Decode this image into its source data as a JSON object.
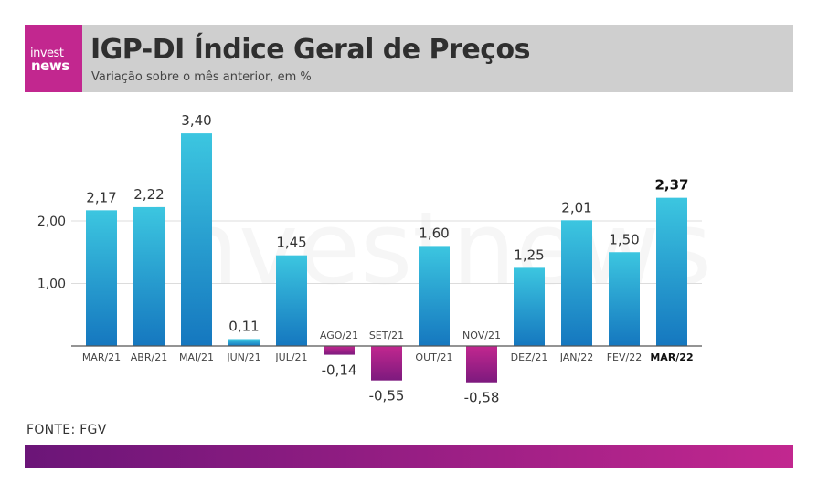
{
  "header": {
    "logo_top": "invest",
    "logo_bottom": "news",
    "title": "IGP-DI   Índice Geral de Preços",
    "subtitle": "Variação sobre o mês anterior, em %"
  },
  "watermark": "investnews",
  "source": "FONTE: FGV",
  "colors": {
    "positive_top": "#3cc6e0",
    "positive_bottom": "#1577bf",
    "negative_top": "#c2278f",
    "negative_bottom": "#7d1a7e",
    "header_bg": "#cfcfcf",
    "brand": "#c2278f"
  },
  "chart_data": {
    "type": "bar",
    "categories": [
      "MAR/21",
      "ABR/21",
      "MAI/21",
      "JUN/21",
      "JUL/21",
      "AGO/21",
      "SET/21",
      "OUT/21",
      "NOV/21",
      "DEZ/21",
      "JAN/22",
      "FEV/22",
      "MAR/22"
    ],
    "values": [
      2.17,
      2.22,
      3.4,
      0.11,
      1.45,
      -0.14,
      -0.55,
      1.6,
      -0.58,
      1.25,
      2.01,
      1.5,
      2.37
    ],
    "value_labels": [
      "2,17",
      "2,22",
      "3,40",
      "0,11",
      "1,45",
      "-0,14",
      "-0,55",
      "1,60",
      "-0,58",
      "1,25",
      "2,01",
      "1,50",
      "2,37"
    ],
    "y_ticks": [
      1.0,
      2.0
    ],
    "y_tick_labels": [
      "1,00",
      "2,00"
    ],
    "ylim": [
      -0.6,
      3.5
    ],
    "highlight_category": "MAR/22",
    "grid": true
  }
}
